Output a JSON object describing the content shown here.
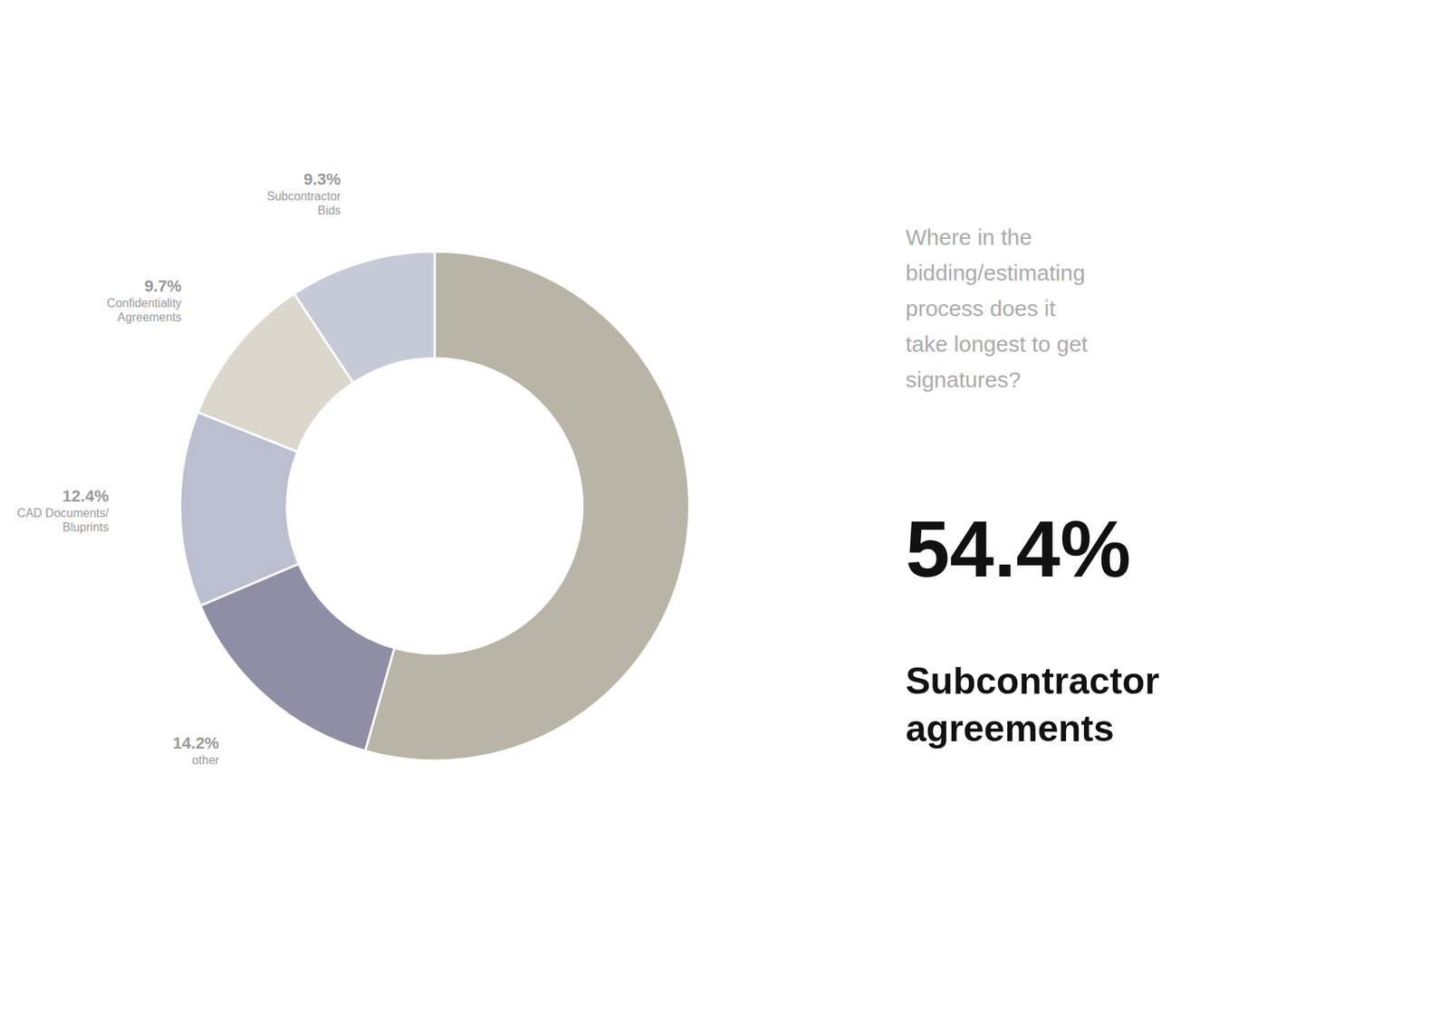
{
  "chart_data": {
    "type": "donut",
    "title": "Where in the\nbidding/estimating\nprocess does it\ntake longest to get\nsignatures?",
    "categories": [
      "Subcontractor\nagreements",
      "other",
      "CAD Documents/\nBluprints",
      "Confidentiality\nAgreements",
      "Subcontractor\nBids"
    ],
    "values": [
      54.4,
      14.2,
      12.4,
      9.7,
      9.3
    ],
    "value_labels": [
      "54.4%",
      "14.2%",
      "12.4%",
      "9.7%",
      "9.3%"
    ],
    "colors": [
      "#b8b4a6",
      "#8e8fa4",
      "#bbbfd0",
      "#dbd7cd",
      "#c5cad6"
    ],
    "data_labels": true
  }
}
